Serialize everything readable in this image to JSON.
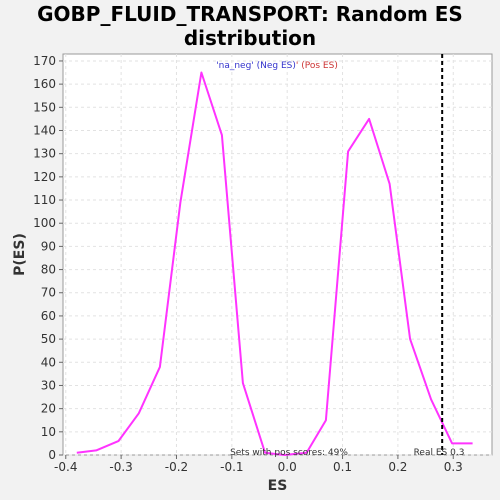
{
  "chart_data": {
    "type": "line",
    "title_line1": "GOBP_FLUID_TRANSPORT: Random ES",
    "title_line2": "distribution",
    "xlabel": "ES",
    "ylabel": "P(ES)",
    "xlim": [
      -0.405,
      0.37
    ],
    "ylim": [
      0,
      173
    ],
    "x_ticks": [
      -0.4,
      -0.3,
      -0.2,
      -0.1,
      0.0,
      0.1,
      0.2,
      0.3
    ],
    "x_tick_labels": [
      "-0.4",
      "-0.3",
      "-0.2",
      "-0.1",
      "0.0",
      "0.1",
      "0.2",
      "0.3"
    ],
    "y_ticks": [
      0,
      10,
      20,
      30,
      40,
      50,
      60,
      70,
      80,
      90,
      100,
      110,
      120,
      130,
      140,
      150,
      160,
      170
    ],
    "grid": true,
    "series": [
      {
        "color": "#ff33ff",
        "x": [
          -0.38,
          -0.345,
          -0.305,
          -0.268,
          -0.23,
          -0.193,
          -0.155,
          -0.118,
          -0.08,
          -0.04,
          -0.005,
          0.035,
          0.07,
          0.11,
          0.148,
          0.185,
          0.222,
          0.26,
          0.298,
          0.335
        ],
        "y": [
          1,
          2,
          6,
          18,
          38,
          109,
          165,
          138,
          31,
          1,
          0,
          1,
          15,
          131,
          145,
          117,
          50,
          24,
          5,
          5
        ]
      }
    ],
    "real_es": 0.28,
    "real_es_label": "Real ES 0.3",
    "pos_scores_label": "Sets with pos scores: 49%",
    "legend_neg": "'na_neg' (Neg ES)",
    "legend_sep": "'",
    "legend_pos": " (Pos ES)",
    "legend_neg_color": "#3333cc",
    "legend_pos_color": "#cc3333"
  }
}
